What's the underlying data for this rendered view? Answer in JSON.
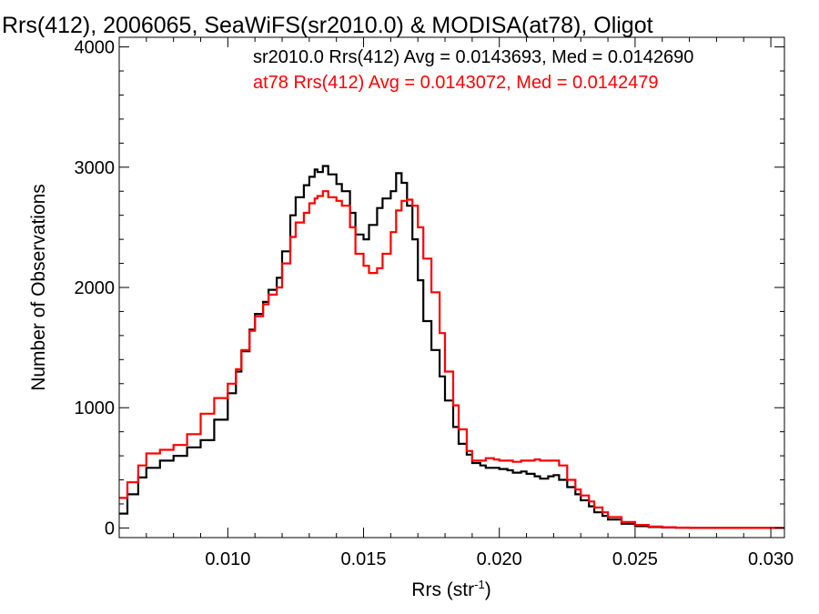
{
  "chart_data": {
    "type": "line",
    "title": "Rrs(412), 2006065, SeaWiFS(sr2010.0) & MODISA(at78), Oligot",
    "xlabel": "Rrs (str",
    "xlabel_sup": "-1",
    "xlabel_end": ")",
    "ylabel": "Number of Observations",
    "xlim": [
      0.006,
      0.0305
    ],
    "ylim": [
      -80,
      4080
    ],
    "x_ticks": [
      0.01,
      0.015,
      0.02,
      0.025,
      0.03
    ],
    "x_tick_labels": [
      "0.010",
      "0.015",
      "0.020",
      "0.025",
      "0.030"
    ],
    "y_ticks": [
      0,
      1000,
      2000,
      3000,
      4000
    ],
    "y_tick_labels": [
      "0",
      "1000",
      "2000",
      "3000",
      "4000"
    ],
    "grid": false,
    "series": [
      {
        "name": "sr2010.0 Rrs(412) Avg = 0.0143693, Med = 0.0142690",
        "color": "#000000",
        "x": [
          0.006,
          0.0063,
          0.0067,
          0.007,
          0.0075,
          0.008,
          0.0085,
          0.009,
          0.0095,
          0.01,
          0.0103,
          0.0105,
          0.0108,
          0.011,
          0.0113,
          0.0115,
          0.0118,
          0.012,
          0.0123,
          0.0125,
          0.0128,
          0.013,
          0.0132,
          0.0133,
          0.0135,
          0.0137,
          0.014,
          0.0142,
          0.0145,
          0.0147,
          0.015,
          0.0152,
          0.0155,
          0.0157,
          0.016,
          0.0162,
          0.0164,
          0.0166,
          0.0168,
          0.017,
          0.0172,
          0.0175,
          0.0178,
          0.018,
          0.0183,
          0.0185,
          0.0188,
          0.019,
          0.0193,
          0.0195,
          0.0198,
          0.02,
          0.0203,
          0.0205,
          0.0208,
          0.021,
          0.0213,
          0.0215,
          0.0218,
          0.022,
          0.0222,
          0.0225,
          0.0228,
          0.023,
          0.0233,
          0.0235,
          0.0238,
          0.024,
          0.0245,
          0.025,
          0.0255,
          0.026,
          0.0265,
          0.027,
          0.028,
          0.029,
          0.03,
          0.0305
        ],
        "y": [
          120,
          280,
          420,
          500,
          560,
          600,
          670,
          730,
          900,
          1120,
          1300,
          1470,
          1650,
          1780,
          1880,
          1980,
          2080,
          2300,
          2600,
          2750,
          2850,
          2920,
          2980,
          2960,
          3010,
          2940,
          2860,
          2800,
          2620,
          2440,
          2400,
          2520,
          2660,
          2740,
          2800,
          2950,
          2870,
          2680,
          2400,
          2060,
          1720,
          1480,
          1260,
          1060,
          840,
          700,
          610,
          540,
          520,
          500,
          500,
          490,
          480,
          460,
          470,
          450,
          430,
          410,
          430,
          440,
          400,
          340,
          280,
          230,
          180,
          130,
          100,
          70,
          35,
          15,
          8,
          4,
          2,
          1,
          0,
          0,
          0,
          0
        ]
      },
      {
        "name": "at78 Rrs(412) Avg = 0.0143072, Med = 0.0142479",
        "color": "#ff0000",
        "x": [
          0.006,
          0.0063,
          0.0067,
          0.007,
          0.0075,
          0.008,
          0.0085,
          0.009,
          0.0095,
          0.01,
          0.0103,
          0.0105,
          0.0108,
          0.011,
          0.0113,
          0.0115,
          0.0118,
          0.012,
          0.0123,
          0.0125,
          0.0128,
          0.013,
          0.0132,
          0.0133,
          0.0135,
          0.0137,
          0.014,
          0.0142,
          0.0145,
          0.0147,
          0.015,
          0.0152,
          0.0155,
          0.0157,
          0.016,
          0.0162,
          0.0164,
          0.0166,
          0.0168,
          0.017,
          0.0172,
          0.0175,
          0.0178,
          0.018,
          0.0183,
          0.0185,
          0.0188,
          0.019,
          0.0193,
          0.0195,
          0.0198,
          0.02,
          0.0203,
          0.0205,
          0.0208,
          0.021,
          0.0213,
          0.0215,
          0.0218,
          0.022,
          0.0222,
          0.0225,
          0.0228,
          0.023,
          0.0233,
          0.0235,
          0.0238,
          0.024,
          0.0245,
          0.025,
          0.0255,
          0.026,
          0.0265,
          0.027,
          0.028,
          0.029,
          0.03,
          0.0305
        ],
        "y": [
          250,
          380,
          520,
          620,
          650,
          690,
          780,
          950,
          1080,
          1200,
          1320,
          1480,
          1640,
          1760,
          1860,
          1940,
          2000,
          2200,
          2420,
          2540,
          2620,
          2700,
          2740,
          2760,
          2800,
          2750,
          2720,
          2680,
          2500,
          2280,
          2180,
          2120,
          2160,
          2280,
          2460,
          2640,
          2720,
          2730,
          2680,
          2500,
          2240,
          1960,
          1620,
          1300,
          1020,
          820,
          640,
          560,
          560,
          580,
          570,
          560,
          560,
          550,
          560,
          560,
          570,
          560,
          560,
          560,
          520,
          400,
          320,
          270,
          220,
          170,
          130,
          90,
          50,
          25,
          12,
          6,
          3,
          1,
          0,
          0,
          0,
          0
        ]
      }
    ]
  }
}
